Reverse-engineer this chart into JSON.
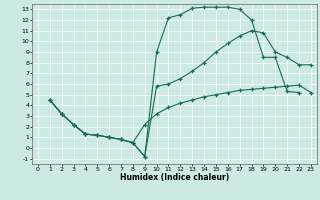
{
  "bg_color": "#cce9e5",
  "line_color": "#1a6b5a",
  "xlabel": "Humidex (Indice chaleur)",
  "xlim": [
    -0.5,
    23.5
  ],
  "ylim": [
    -1.5,
    13.5
  ],
  "xticks": [
    0,
    1,
    2,
    3,
    4,
    5,
    6,
    7,
    8,
    9,
    10,
    11,
    12,
    13,
    14,
    15,
    16,
    17,
    18,
    19,
    20,
    21,
    22,
    23
  ],
  "yticks": [
    -1,
    0,
    1,
    2,
    3,
    4,
    5,
    6,
    7,
    8,
    9,
    10,
    11,
    12,
    13
  ],
  "line1_x": [
    1,
    2,
    3,
    4,
    5,
    6,
    7,
    8,
    9,
    10,
    11,
    12,
    13,
    14,
    15,
    16,
    17,
    18,
    19,
    20,
    21,
    22
  ],
  "line1_y": [
    4.5,
    3.2,
    2.2,
    1.3,
    1.2,
    1.0,
    0.8,
    0.5,
    -0.8,
    9.0,
    12.2,
    12.5,
    13.1,
    13.2,
    13.2,
    13.2,
    13.0,
    12.0,
    8.5,
    8.5,
    5.3,
    5.2
  ],
  "line2_x": [
    1,
    2,
    3,
    4,
    5,
    6,
    7,
    8,
    9,
    10,
    11,
    12,
    13,
    14,
    15,
    16,
    17,
    18,
    19,
    20,
    21,
    22,
    23
  ],
  "line2_y": [
    4.5,
    3.2,
    2.2,
    1.3,
    1.2,
    1.0,
    0.8,
    0.5,
    -0.8,
    5.8,
    6.0,
    6.5,
    7.2,
    8.0,
    9.0,
    9.8,
    10.5,
    11.0,
    10.8,
    9.0,
    8.5,
    7.8,
    7.8
  ],
  "line3_x": [
    1,
    2,
    3,
    4,
    5,
    6,
    7,
    8,
    9,
    10,
    11,
    12,
    13,
    14,
    15,
    16,
    17,
    18,
    19,
    20,
    21,
    22,
    23
  ],
  "line3_y": [
    4.5,
    3.2,
    2.2,
    1.3,
    1.2,
    1.0,
    0.8,
    0.5,
    2.2,
    3.2,
    3.8,
    4.2,
    4.5,
    4.8,
    5.0,
    5.2,
    5.4,
    5.5,
    5.6,
    5.7,
    5.8,
    5.9,
    5.2
  ]
}
